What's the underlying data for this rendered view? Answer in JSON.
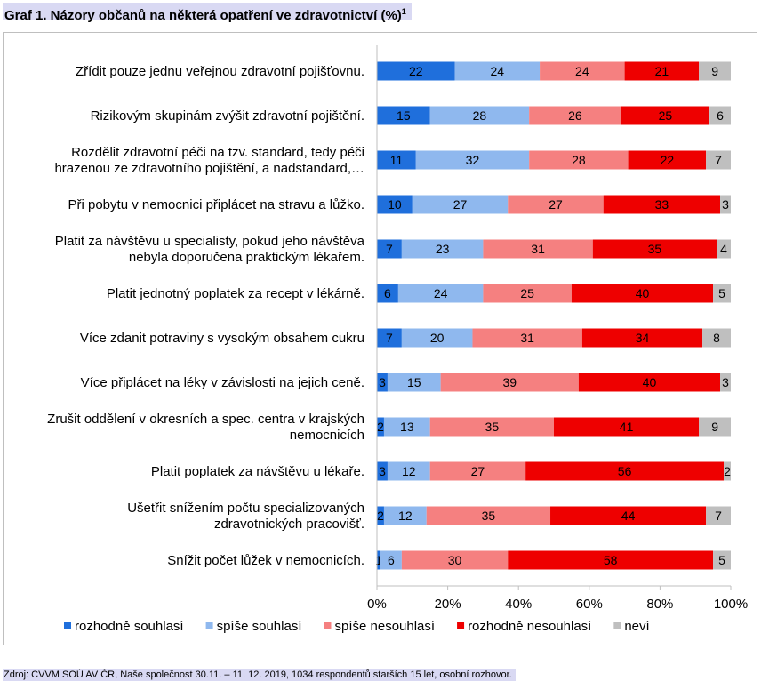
{
  "title": "Graf 1. Názory občanů na některá opatření ve zdravotnictví (%)",
  "title_sup": "1",
  "source": "Zdroj: CVVM SOÚ AV ČR, Naše společnost 30.11. – 11. 12. 2019, 1034 respondentů starších 15 let, osobní rozhovor.",
  "chart_data": {
    "type": "bar",
    "orientation": "horizontal",
    "stacked": "percent",
    "categories": [
      [
        "Zřídit pouze jednu veřejnou zdravotní pojišťovnu."
      ],
      [
        "Rizikovým skupinám zvýšit zdravotní pojištění."
      ],
      [
        "Rozdělit zdravotní péči na tzv. standard, tedy péči",
        "hrazenou ze zdravotního pojištění, a nadstandard,…"
      ],
      [
        "Při pobytu v nemocnici připlácet na stravu a lůžko."
      ],
      [
        "Platit za návštěvu u specialisty, pokud jeho návštěva",
        "nebyla doporučena praktickým lékařem."
      ],
      [
        "Platit jednotný poplatek za recept v lékárně."
      ],
      [
        "Více zdanit potraviny s vysokým obsahem cukru"
      ],
      [
        "Více připlácet na léky v závislosti na jejich ceně."
      ],
      [
        "Zrušit oddělení v okresních a spec. centra v krajských",
        "nemocnicích"
      ],
      [
        "Platit poplatek za návštěvu u lékaře."
      ],
      [
        "Ušetřit snížením počtu specializovaných",
        "zdravotnických pracovišť."
      ],
      [
        "Snížit počet lůžek v nemocnicích."
      ]
    ],
    "series": [
      {
        "name": "rozhodně souhlasí",
        "color": "#1f6fdc",
        "values": [
          22,
          15,
          11,
          10,
          7,
          6,
          7,
          3,
          2,
          3,
          2,
          1
        ]
      },
      {
        "name": "spíše souhlasí",
        "color": "#8fb8ee",
        "values": [
          24,
          28,
          32,
          27,
          23,
          24,
          20,
          15,
          13,
          12,
          12,
          6
        ]
      },
      {
        "name": "spíše nesouhlasí",
        "color": "#f58080",
        "values": [
          24,
          26,
          28,
          27,
          31,
          25,
          31,
          39,
          35,
          27,
          35,
          30
        ]
      },
      {
        "name": "rozhodně nesouhlasí",
        "color": "#ee0000",
        "values": [
          21,
          25,
          22,
          33,
          35,
          40,
          34,
          40,
          41,
          56,
          44,
          58
        ]
      },
      {
        "name": "neví",
        "color": "#bfbfbf",
        "values": [
          9,
          6,
          7,
          3,
          4,
          5,
          8,
          3,
          9,
          2,
          7,
          5
        ]
      }
    ],
    "xlim": [
      0,
      100
    ],
    "xticks": [
      "0%",
      "20%",
      "40%",
      "60%",
      "80%",
      "100%"
    ],
    "legend_position": "bottom",
    "grid": false
  }
}
